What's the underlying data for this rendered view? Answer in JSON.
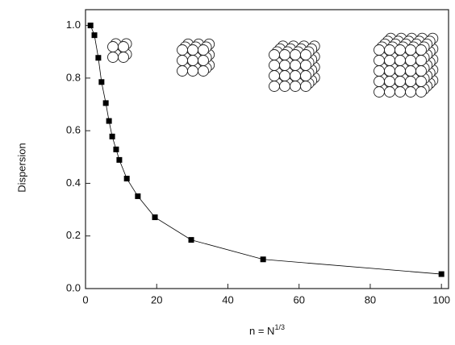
{
  "chart_data": {
    "type": "scatter",
    "xlabel": {
      "text": "n = N",
      "superscript": "1/3"
    },
    "ylabel": "Dispersion",
    "xlim": [
      0,
      102
    ],
    "ylim": [
      0,
      1.06
    ],
    "xticks": [
      0,
      20,
      40,
      60,
      80,
      100
    ],
    "yticks": [
      {
        "value": 0,
        "label": "0.0"
      },
      0.2,
      0.4,
      0.6,
      0.8,
      {
        "value": 1,
        "label": "1.0"
      }
    ],
    "series": [
      {
        "color": "#000000",
        "fit_line": true,
        "x": [
          1.4,
          2.5,
          3.6,
          4.5,
          5.7,
          6.6,
          7.5,
          8.6,
          9.5,
          11.6,
          14.7,
          19.5,
          29.7,
          49.9,
          100
        ],
        "values": [
          1.0,
          0.963,
          0.877,
          0.785,
          0.705,
          0.637,
          0.578,
          0.529,
          0.489,
          0.418,
          0.351,
          0.271,
          0.185,
          0.111,
          0.055
        ]
      }
    ]
  }
}
